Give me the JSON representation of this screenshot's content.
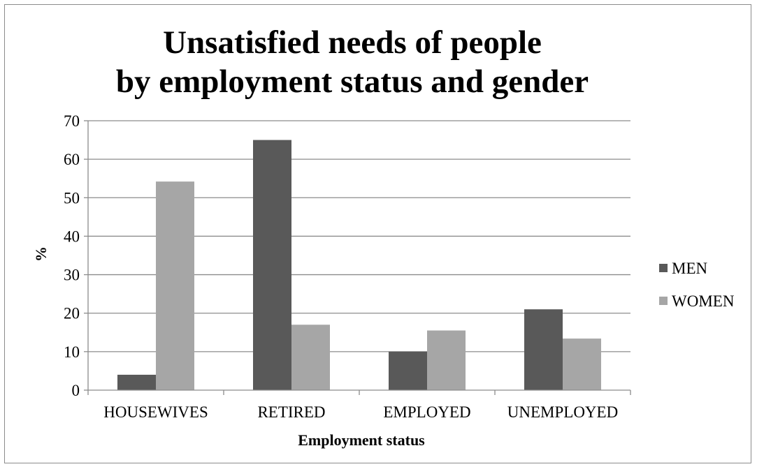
{
  "chart_data": {
    "type": "bar",
    "title": [
      "Unsatisfied needs of people",
      "by employment status and gender"
    ],
    "xlabel": "Employment status",
    "ylabel": "%",
    "categories": [
      "HOUSEWIVES",
      "RETIRED",
      "EMPLOYED",
      "UNEMPLOYED"
    ],
    "series": [
      {
        "name": "MEN",
        "values": [
          4,
          65,
          10,
          21
        ],
        "color": "#595959"
      },
      {
        "name": "WOMEN",
        "values": [
          54.2,
          17,
          15.5,
          13.4
        ],
        "color": "#a6a6a6"
      }
    ],
    "ylim": [
      0,
      70
    ],
    "yticks": [
      0,
      10,
      20,
      30,
      40,
      50,
      60,
      70
    ],
    "grid": true,
    "legend": "right"
  }
}
